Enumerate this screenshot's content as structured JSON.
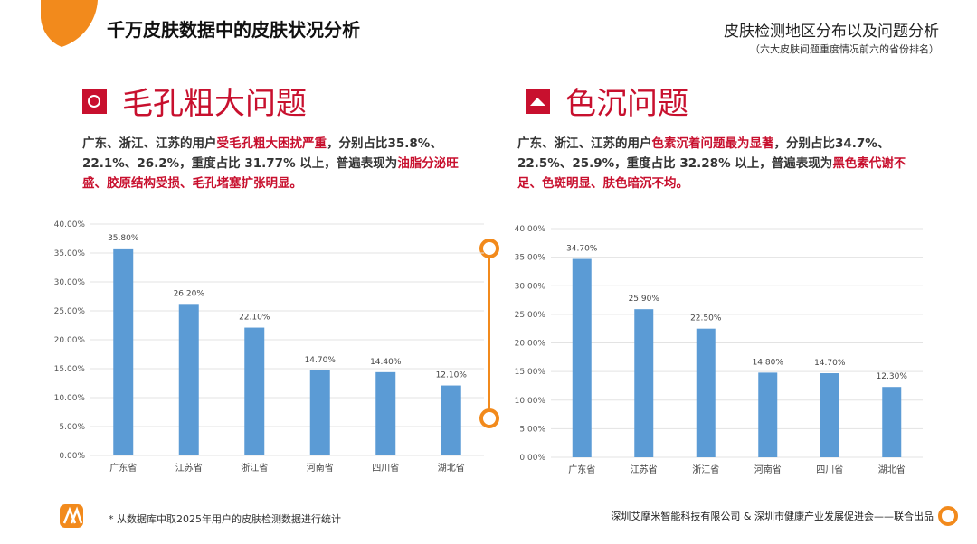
{
  "header": {
    "title": "千万皮肤数据中的皮肤状况分析",
    "right_title": "皮肤检测地区分布以及问题分析",
    "right_subtitle": "（六大皮肤问题重度情况前六的省份排名）"
  },
  "sections": [
    {
      "title": "毛孔粗大问题",
      "description": [
        "广东、浙江、江苏的用户",
        "受毛孔粗大困扰严重",
        "，分别占比35.8%、22.1%、26.2%，重度占比 31.77% 以上，普遍表现为",
        "油脂分泌旺盛、胶原结构受损、毛孔堵塞扩张明显。"
      ]
    },
    {
      "title": "色沉问题",
      "description": [
        "广东、浙江、江苏的用户",
        "色素沉着问题最为显著",
        "，分别占比34.7%、22.5%、25.9%，重度占比 32.28% 以上，普遍表现为",
        "黑色素代谢不足、色斑明显、肤色暗沉不均。"
      ]
    }
  ],
  "chart_data": [
    {
      "type": "bar",
      "categories": [
        "广东省",
        "江苏省",
        "浙江省",
        "河南省",
        "四川省",
        "湖北省"
      ],
      "values": [
        35.8,
        26.2,
        22.1,
        14.7,
        14.4,
        12.1
      ],
      "value_labels": [
        "35.80%",
        "26.20%",
        "22.10%",
        "14.70%",
        "14.40%",
        "12.10%"
      ],
      "color": "#5b9bd5",
      "ylim": [
        0,
        40
      ],
      "grid": true,
      "yticks": [
        {
          "value": 0,
          "label": "0.00%"
        },
        {
          "value": 5,
          "label": "5.00%"
        },
        {
          "value": 10,
          "label": "10.00%"
        },
        {
          "value": 15,
          "label": "15.00%"
        },
        {
          "value": 20,
          "label": "20.00%"
        },
        {
          "value": 25,
          "label": "25.00%"
        },
        {
          "value": 30,
          "label": "30.00%"
        },
        {
          "value": 35,
          "label": "35.00%"
        },
        {
          "value": 40,
          "label": "40.00%"
        }
      ]
    },
    {
      "type": "bar",
      "categories": [
        "广东省",
        "江苏省",
        "浙江省",
        "河南省",
        "四川省",
        "湖北省"
      ],
      "values": [
        34.7,
        25.9,
        22.5,
        14.8,
        14.7,
        12.3
      ],
      "value_labels": [
        "34.70%",
        "25.90%",
        "22.50%",
        "14.80%",
        "14.70%",
        "12.30%"
      ],
      "color": "#5b9bd5",
      "ylim": [
        0,
        40
      ],
      "grid": true,
      "yticks": [
        {
          "value": 0,
          "label": "0.00%"
        },
        {
          "value": 5,
          "label": "5.00%"
        },
        {
          "value": 10,
          "label": "10.00%"
        },
        {
          "value": 15,
          "label": "15.00%"
        },
        {
          "value": 20,
          "label": "20.00%"
        },
        {
          "value": 25,
          "label": "25.00%"
        },
        {
          "value": 30,
          "label": "30.00%"
        },
        {
          "value": 35,
          "label": "35.00%"
        },
        {
          "value": 40,
          "label": "40.00%"
        }
      ]
    }
  ],
  "footer": {
    "note": "* 从数据库中取2025年用户的皮肤检测数据进行统计",
    "credit": "深圳艾摩米智能科技有限公司 & 深圳市健康产业发展促进会——联合出品"
  }
}
